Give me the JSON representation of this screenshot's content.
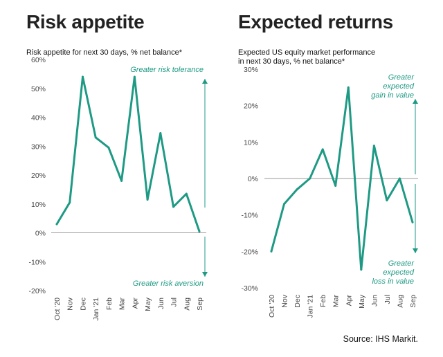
{
  "colors": {
    "line": "#1e9a84",
    "zero": "#999999",
    "arrow": "#1e9a84",
    "text": "#222222"
  },
  "source": "Source: IHS Markit.",
  "chart_data": [
    {
      "type": "line",
      "title": "Risk appetite",
      "subtitle": [
        "Risk appetite for next 30 days, % net balance*"
      ],
      "x": [
        "Oct '20",
        "Nov",
        "Dec",
        "Jan '21",
        "Feb",
        "Mar",
        "Apr",
        "May",
        "Jun",
        "Jul",
        "Aug",
        "Sep"
      ],
      "series": [
        {
          "name": "Risk appetite",
          "values": [
            3,
            10.5,
            54,
            33,
            29.5,
            18,
            54,
            11.5,
            34.5,
            9,
            13.5,
            0.5
          ]
        }
      ],
      "ylim": [
        -20,
        60
      ],
      "yticks": [
        -20,
        -10,
        0,
        10,
        20,
        30,
        40,
        50,
        60
      ],
      "ytick_labels": [
        "-20%",
        "-10%",
        "0%",
        "10%",
        "20%",
        "30%",
        "40%",
        "50%",
        "60%"
      ],
      "annotations": {
        "upper": [
          "Greater risk tolerance"
        ],
        "lower": [
          "Greater risk aversion"
        ]
      }
    },
    {
      "type": "line",
      "title": "Expected returns",
      "subtitle": [
        "Expected US equity market performance",
        "in next 30 days, % net balance*"
      ],
      "x": [
        "Oct '20",
        "Nov",
        "Dec",
        "Jan '21",
        "Feb",
        "Mar",
        "Apr",
        "May",
        "Jun",
        "Jul",
        "Aug",
        "Sep"
      ],
      "series": [
        {
          "name": "Expected returns",
          "values": [
            -20,
            -7,
            -3,
            0,
            8,
            -2,
            25,
            -25,
            9,
            -6,
            0,
            -12
          ]
        }
      ],
      "ylim": [
        -30,
        30
      ],
      "yticks": [
        -30,
        -20,
        -10,
        0,
        10,
        20,
        30
      ],
      "ytick_labels": [
        "-30%",
        "-20%",
        "-10%",
        "0%",
        "10%",
        "20%",
        "30%"
      ],
      "annotations": {
        "upper": [
          "Greater",
          "expected",
          "gain in value"
        ],
        "lower": [
          "Greater",
          "expected",
          "loss in value"
        ]
      }
    }
  ]
}
